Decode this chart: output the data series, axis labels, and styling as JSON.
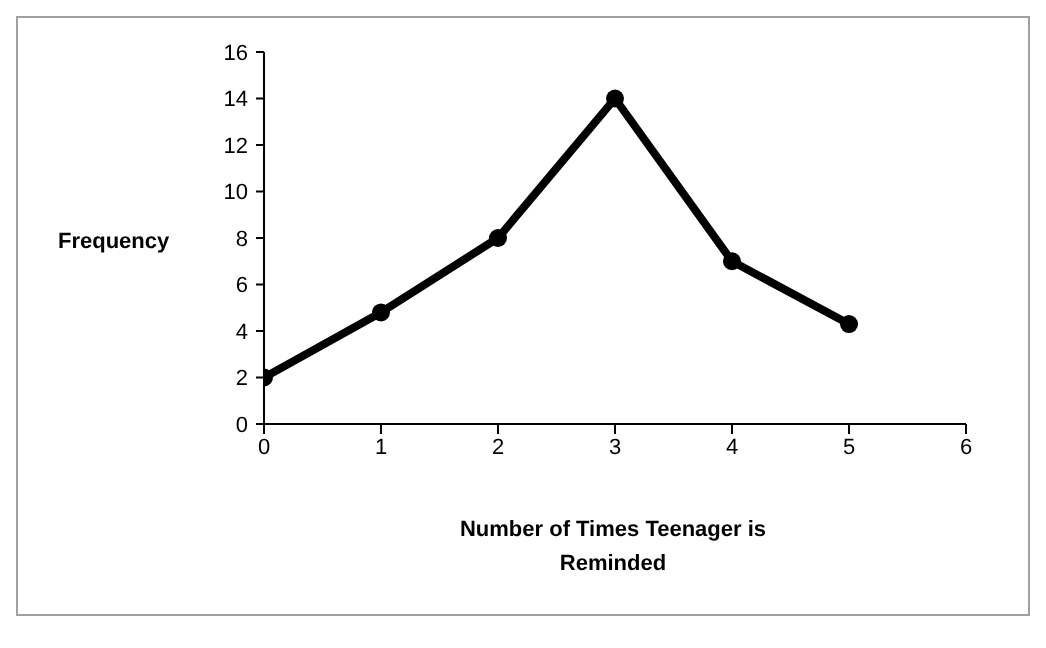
{
  "chart_data": {
    "type": "line",
    "xlabel": "Number of Times Teenager is Reminded",
    "ylabel": "Frequency",
    "x": [
      0,
      1,
      2,
      3,
      4,
      5
    ],
    "series": [
      {
        "color": "#000000",
        "values": [
          2,
          4.8,
          8,
          14,
          7,
          4.3
        ]
      }
    ],
    "xlim": [
      0,
      6
    ],
    "xticks": [
      0,
      1,
      2,
      3,
      4,
      5,
      6
    ],
    "ylim": [
      0,
      16
    ],
    "yticks": [
      0,
      2,
      4,
      6,
      8,
      10,
      12,
      14,
      16
    ],
    "grid": false,
    "legend": false,
    "marker": "circle",
    "line_style": "solid"
  }
}
